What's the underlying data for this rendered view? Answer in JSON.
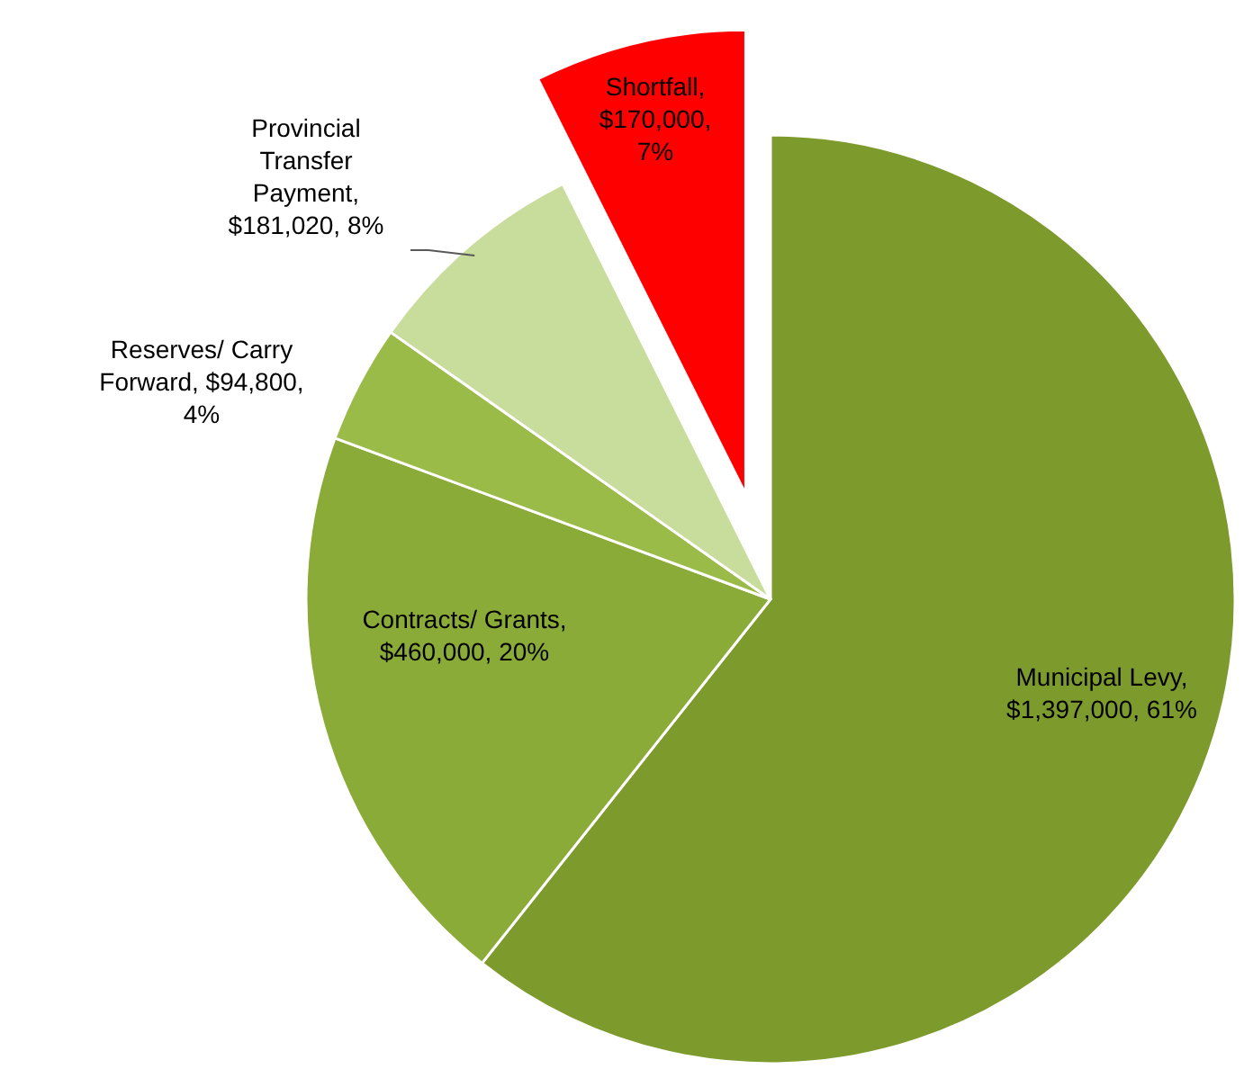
{
  "chart_data": {
    "type": "pie",
    "categories": [
      "Municipal Levy",
      "Contracts/ Grants",
      "Reserves/ Carry Forward",
      "Provincial Transfer Payment",
      "Shortfall"
    ],
    "values": [
      1397000,
      460000,
      94800,
      181020,
      170000
    ],
    "value_labels": [
      ", $1,397,000, 61%",
      ", $460,000, 20%",
      ", $94,800, 4%",
      ", $181,020, 8%",
      ", $170,000, 7%"
    ],
    "colors": [
      "#7d9a2c",
      "#8bab38",
      "#9abb48",
      "#c8dc9c",
      "#ff0000"
    ]
  }
}
